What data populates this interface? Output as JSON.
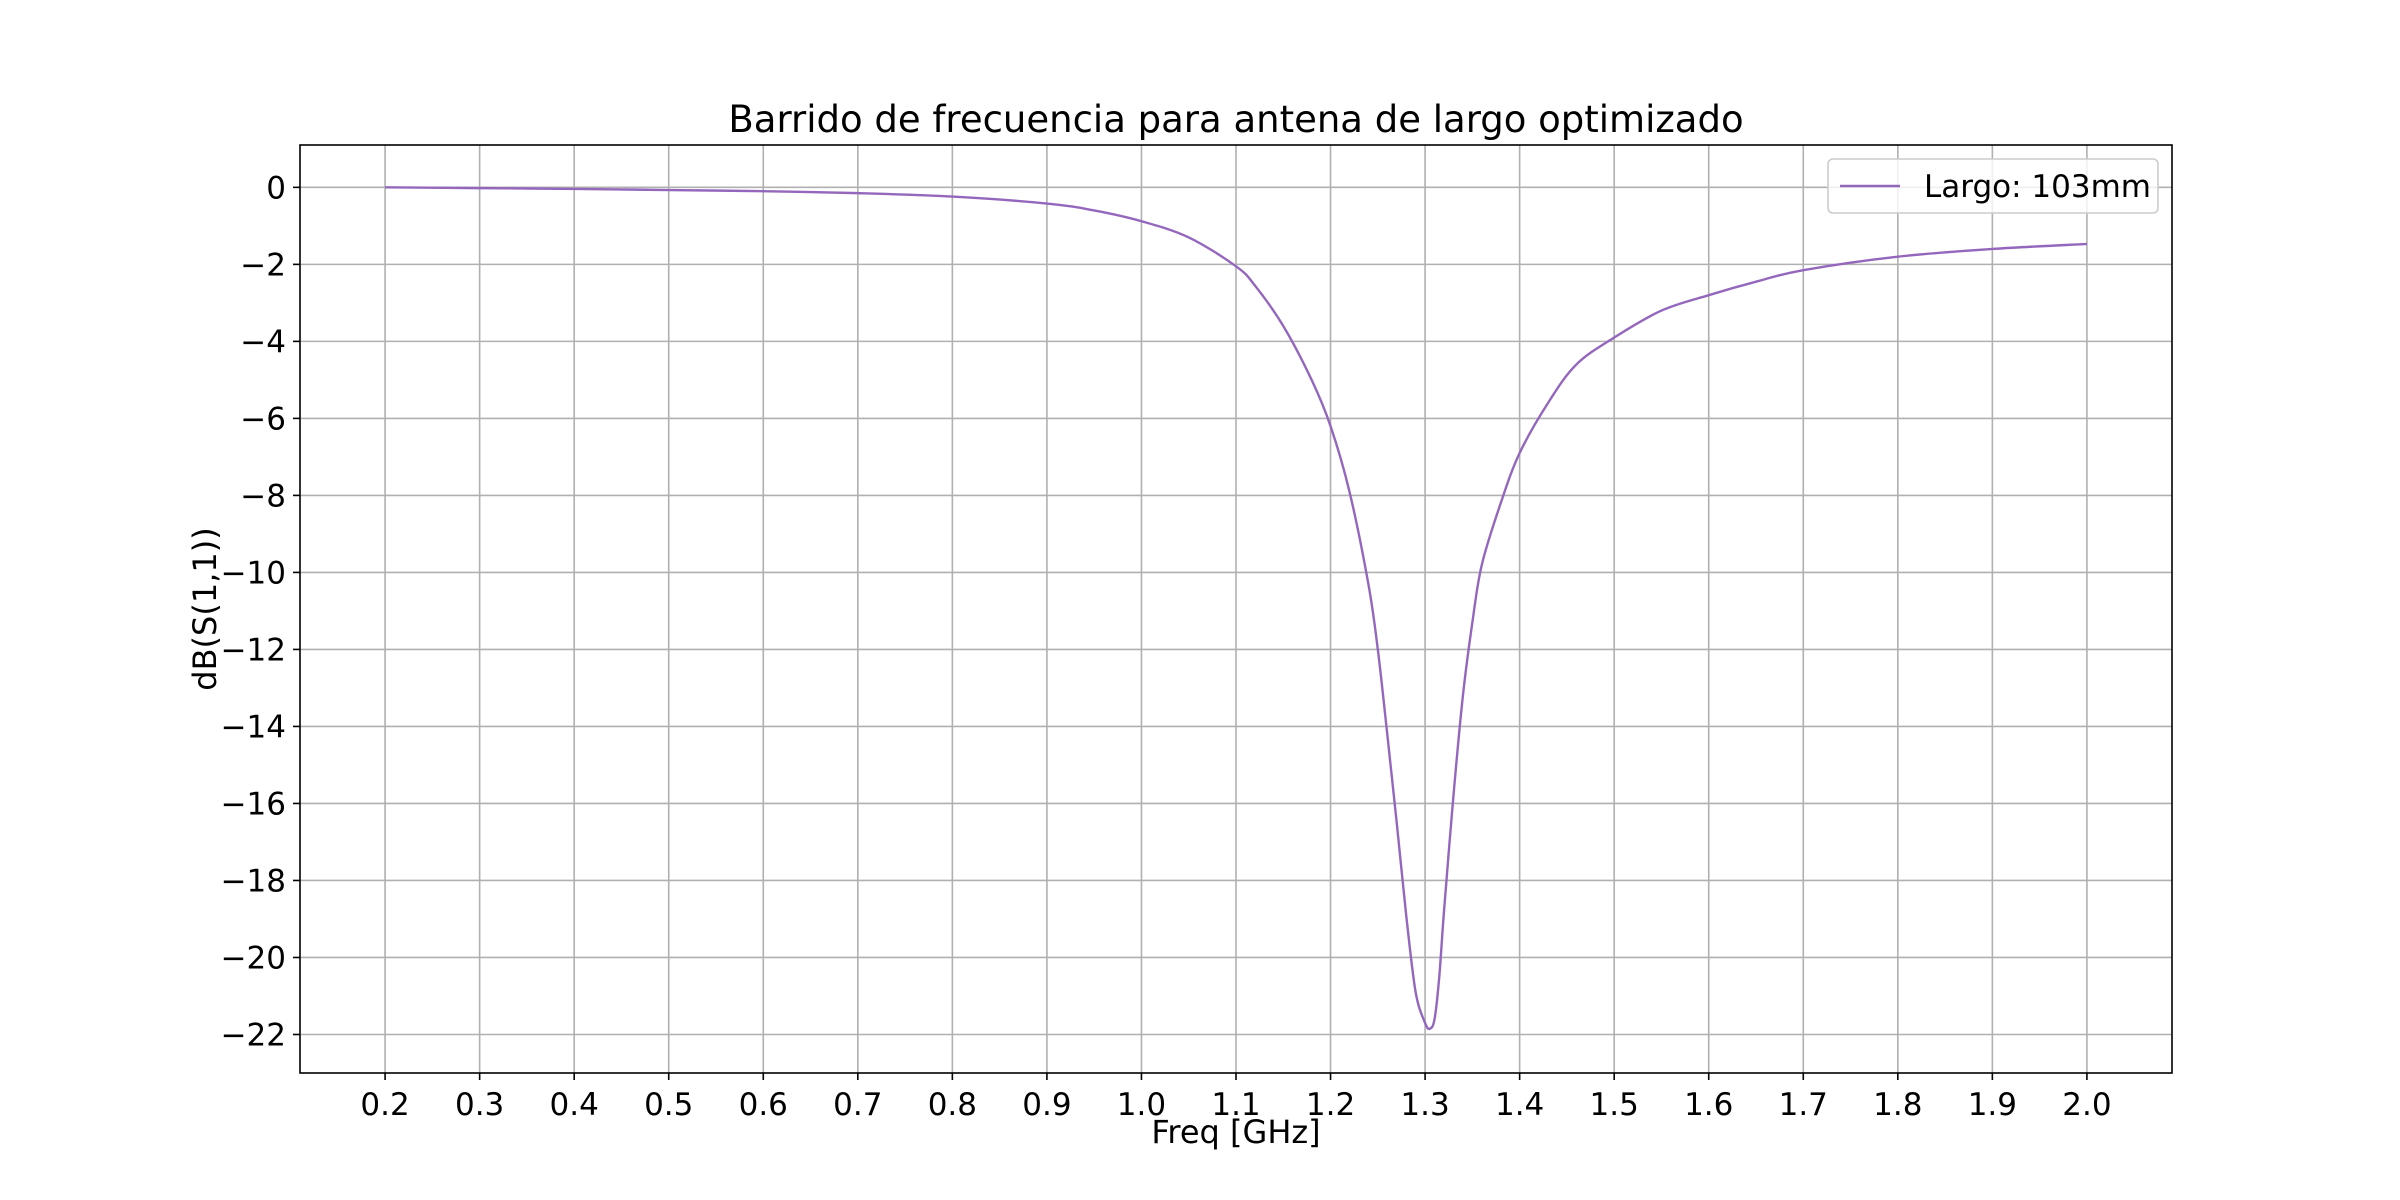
{
  "chart_data": {
    "type": "line",
    "title": "Barrido de frecuencia para antena de largo optimizado",
    "xlabel": "Freq [GHz]",
    "ylabel": "dB(S(1,1))",
    "xlim": [
      0.11,
      2.09
    ],
    "ylim": [
      -23,
      1.1
    ],
    "xticks": [
      0.2,
      0.3,
      0.4,
      0.5,
      0.6,
      0.7,
      0.8,
      0.9,
      1.0,
      1.1,
      1.2,
      1.3,
      1.4,
      1.5,
      1.6,
      1.7,
      1.8,
      1.9,
      2.0
    ],
    "xtick_labels": [
      "0.2",
      "0.3",
      "0.4",
      "0.5",
      "0.6",
      "0.7",
      "0.8",
      "0.9",
      "1.0",
      "1.1",
      "1.2",
      "1.3",
      "1.4",
      "1.5",
      "1.6",
      "1.7",
      "1.8",
      "1.9",
      "2.0"
    ],
    "yticks": [
      0,
      -2,
      -4,
      -6,
      -8,
      -10,
      -12,
      -14,
      -16,
      -18,
      -20,
      -22
    ],
    "ytick_labels": [
      "0",
      "−2",
      "−4",
      "−6",
      "−8",
      "−10",
      "−12",
      "−14",
      "−16",
      "−18",
      "−20",
      "−22"
    ],
    "grid": true,
    "legend_position": "top-right",
    "series": [
      {
        "name": "Largo: 103mm",
        "color": "#9467bd",
        "x": [
          0.2,
          0.3,
          0.4,
          0.5,
          0.6,
          0.7,
          0.8,
          0.9,
          0.95,
          1.0,
          1.05,
          1.1,
          1.12,
          1.15,
          1.18,
          1.2,
          1.22,
          1.24,
          1.25,
          1.26,
          1.27,
          1.28,
          1.29,
          1.3,
          1.305,
          1.31,
          1.315,
          1.32,
          1.33,
          1.34,
          1.35,
          1.36,
          1.38,
          1.4,
          1.43,
          1.46,
          1.5,
          1.55,
          1.6,
          1.65,
          1.7,
          1.8,
          1.9,
          2.0
        ],
        "y": [
          0,
          -0.02,
          -0.04,
          -0.07,
          -0.1,
          -0.15,
          -0.24,
          -0.42,
          -0.6,
          -0.88,
          -1.3,
          -2.05,
          -2.55,
          -3.6,
          -5.0,
          -6.2,
          -7.9,
          -10.3,
          -12.0,
          -14.2,
          -16.5,
          -18.9,
          -20.9,
          -21.7,
          -21.85,
          -21.6,
          -20.5,
          -18.8,
          -15.8,
          -13.2,
          -11.3,
          -9.8,
          -8.2,
          -6.9,
          -5.6,
          -4.6,
          -3.9,
          -3.2,
          -2.8,
          -2.45,
          -2.15,
          -1.8,
          -1.6,
          -1.47
        ]
      }
    ]
  }
}
